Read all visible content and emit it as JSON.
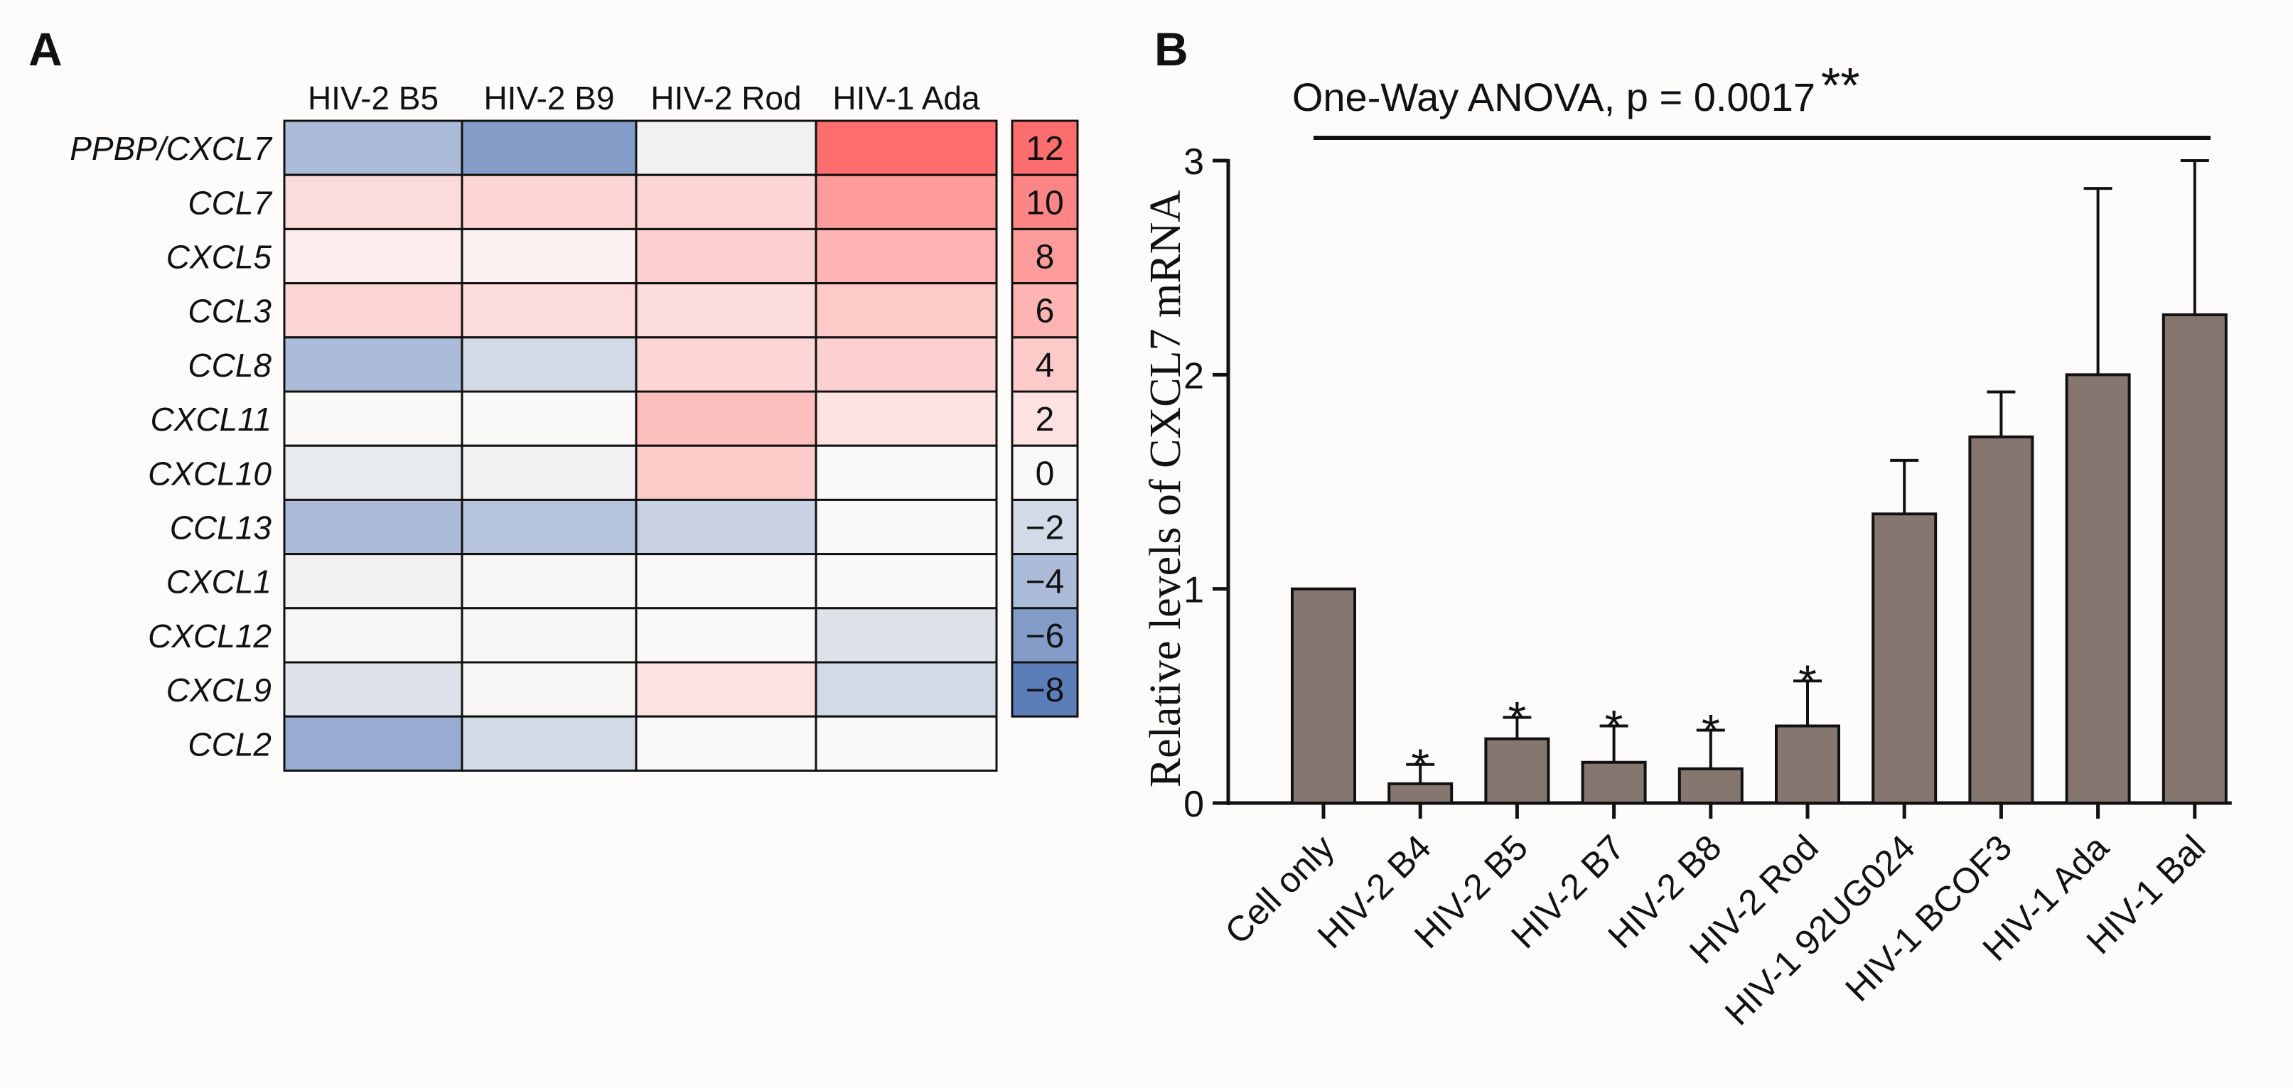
{
  "panel_a": {
    "label": "A",
    "columns": [
      "HIV-2 B5",
      "HIV-2 B9",
      "HIV-2 Rod",
      "HIV-1 Ada"
    ],
    "rows": [
      "PPBP/CXCL7",
      "CCL7",
      "CXCL5",
      "CCL3",
      "CCL8",
      "CXCL11",
      "CXCL10",
      "CCL13",
      "CXCL1",
      "CXCL12",
      "CXCL9",
      "CCL2"
    ],
    "scale_values": [
      "12",
      "10",
      "8",
      "6",
      "4",
      "2",
      "0",
      "−2",
      "−4",
      "−6",
      "−8"
    ]
  },
  "panel_b": {
    "label": "B",
    "stat_text": "One-Way ANOVA, p = 0.0017",
    "stat_stars": "**",
    "sig_marker": "*"
  },
  "colors": {
    "bar_fill": "#857770",
    "scale_pos_max": "#ff6e6e",
    "scale_neg_max": "#5b7db8",
    "neutral": "#fbf9f7"
  },
  "chart_data": [
    {
      "type": "heatmap",
      "title": "",
      "x_categories": [
        "HIV-2 B5",
        "HIV-2 B9",
        "HIV-2 Rod",
        "HIV-1 Ada"
      ],
      "y_categories": [
        "PPBP/CXCL7",
        "CCL7",
        "CXCL5",
        "CCL3",
        "CCL8",
        "CXCL11",
        "CXCL10",
        "CCL13",
        "CXCL1",
        "CXCL12",
        "CXCL9",
        "CCL2"
      ],
      "values": [
        [
          -4,
          -6,
          -0.5,
          12
        ],
        [
          2.5,
          3,
          3,
          8
        ],
        [
          1,
          0.5,
          3.5,
          6
        ],
        [
          3,
          2.5,
          2.5,
          4
        ],
        [
          -4,
          -2,
          3,
          3.5
        ],
        [
          0,
          0,
          5,
          2
        ],
        [
          -1,
          -0.5,
          4,
          0
        ],
        [
          -4,
          -3.5,
          -2.5,
          0
        ],
        [
          -0.5,
          -0.2,
          0,
          0
        ],
        [
          -0.2,
          -0.2,
          0,
          -1.5
        ],
        [
          -1.5,
          -0.2,
          2,
          -2
        ],
        [
          -5,
          -2,
          0,
          0
        ]
      ],
      "color_range": [
        -8,
        12
      ],
      "colorbar_ticks": [
        12,
        10,
        8,
        6,
        4,
        2,
        0,
        -2,
        -4,
        -6,
        -8
      ]
    },
    {
      "type": "bar",
      "title": "One-Way ANOVA, p = 0.0017**",
      "categories": [
        "Cell only",
        "HIV-2 B4",
        "HIV-2 B5",
        "HIV-2 B7",
        "HIV-2 B8",
        "HIV-2 Rod",
        "HIV-1 92UG024",
        "HIV-1 BCOF3",
        "HIV-1 Ada",
        "HIV-1 Bal"
      ],
      "values": [
        1.0,
        0.09,
        0.3,
        0.19,
        0.16,
        0.36,
        1.35,
        1.71,
        2.0,
        2.28
      ],
      "errors": [
        0,
        0.09,
        0.1,
        0.17,
        0.18,
        0.21,
        0.25,
        0.21,
        0.87,
        0.72
      ],
      "significant": [
        false,
        true,
        true,
        true,
        true,
        true,
        false,
        false,
        false,
        false
      ],
      "xlabel": "",
      "ylabel": "Relative levels of CXCL7 mRNA",
      "ylim": [
        0,
        3
      ],
      "yticks": [
        0,
        1,
        2,
        3
      ],
      "grid": false
    }
  ]
}
